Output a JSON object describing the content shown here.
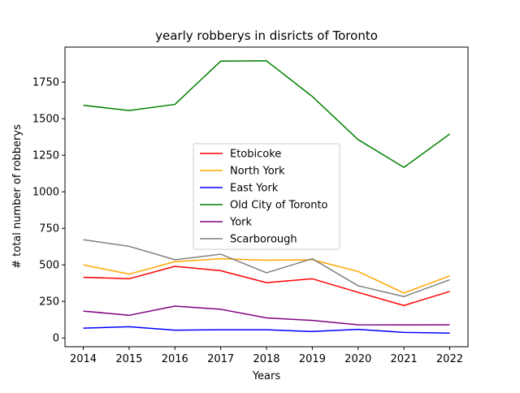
{
  "chart_data": {
    "type": "line",
    "title": "yearly robberys in disricts of Toronto",
    "xlabel": "Years",
    "ylabel": "# total number of robberys",
    "x": [
      2014,
      2015,
      2016,
      2017,
      2018,
      2019,
      2020,
      2021,
      2022
    ],
    "x_tick_labels": [
      "2014",
      "2015",
      "2016",
      "2017",
      "2018",
      "2019",
      "2020",
      "2021",
      "2022"
    ],
    "y_ticks": [
      0,
      250,
      500,
      750,
      1000,
      1250,
      1500,
      1750
    ],
    "y_tick_labels": [
      "0",
      "250",
      "500",
      "750",
      "1000",
      "1250",
      "1500",
      "1750"
    ],
    "xlim": [
      2013.6,
      2022.4
    ],
    "ylim": [
      -60,
      1990
    ],
    "grid": false,
    "legend_position": "center",
    "series": [
      {
        "name": "Etobicoke",
        "color": "#ff0000",
        "values": [
          415,
          405,
          490,
          460,
          378,
          405,
          312,
          222,
          318
        ]
      },
      {
        "name": "North York",
        "color": "#ffa500",
        "values": [
          500,
          437,
          522,
          542,
          532,
          535,
          455,
          307,
          425
        ]
      },
      {
        "name": "East York",
        "color": "#0000ff",
        "values": [
          67,
          77,
          53,
          56,
          56,
          44,
          59,
          38,
          33
        ]
      },
      {
        "name": "Old City of Toronto",
        "color": "#008000",
        "values": [
          1592,
          1556,
          1598,
          1894,
          1896,
          1652,
          1357,
          1167,
          1395
        ]
      },
      {
        "name": "York",
        "color": "#800080",
        "values": [
          184,
          155,
          218,
          196,
          137,
          120,
          90,
          89,
          90
        ]
      },
      {
        "name": "Scarborough",
        "color": "#808080",
        "values": [
          672,
          627,
          535,
          573,
          446,
          542,
          357,
          283,
          398
        ]
      }
    ]
  }
}
